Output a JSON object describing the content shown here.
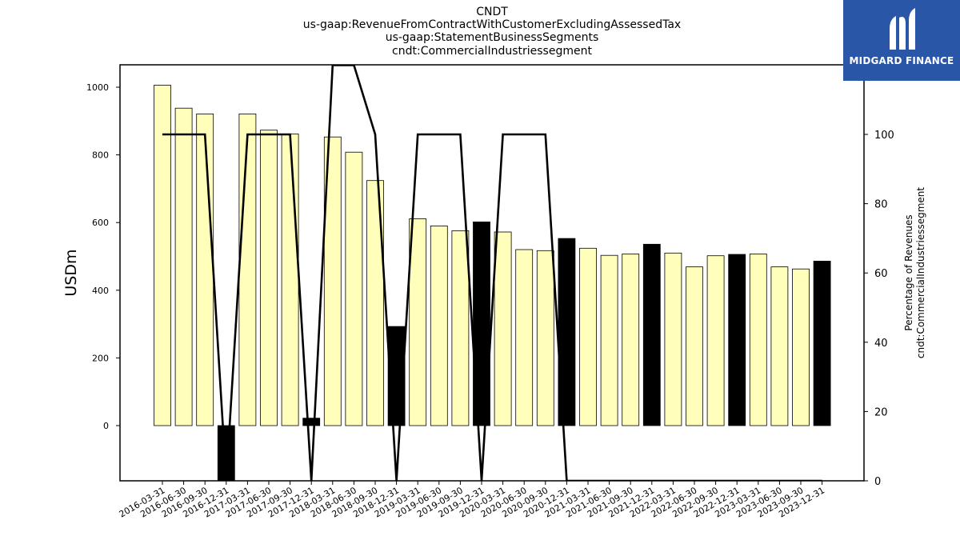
{
  "titles": [
    "CNDT",
    "us-gaap:RevenueFromContractWithCustomerExcludingAssessedTax",
    "us-gaap:StatementBusinessSegments",
    "cndt:CommercialIndustriessegment"
  ],
  "logo": {
    "text": "MIDGARD FINANCE",
    "icon": "midgard-logo-icon",
    "background": "#2a56a8"
  },
  "colors": {
    "positive_bar": "#ffffbb",
    "negative_change_bar": "#000000",
    "line": "#000000"
  },
  "chart_data": {
    "type": "bar",
    "categories": [
      "2016-03-31",
      "2016-06-30",
      "2016-09-30",
      "2016-12-31",
      "2017-03-31",
      "2017-06-30",
      "2017-09-30",
      "2017-12-31",
      "2018-03-31",
      "2018-06-30",
      "2018-09-30",
      "2018-12-31",
      "2019-03-31",
      "2019-06-30",
      "2019-09-30",
      "2019-12-31",
      "2020-03-31",
      "2020-06-30",
      "2020-09-30",
      "2020-12-31",
      "2021-03-31",
      "2021-06-30",
      "2021-09-30",
      "2021-12-31",
      "2022-03-31",
      "2022-06-30",
      "2022-09-30",
      "2022-12-31",
      "2023-03-31",
      "2023-06-30",
      "2023-09-30",
      "2023-12-31"
    ],
    "values": [
      1006,
      938,
      921,
      -195,
      921,
      873,
      862,
      22,
      853,
      808,
      724,
      293,
      611,
      590,
      576,
      602,
      572,
      520,
      517,
      553,
      524,
      503,
      507,
      536,
      510,
      469,
      502,
      506,
      507,
      469,
      463,
      486
    ],
    "bar_styles": [
      "light",
      "light",
      "light",
      "dark",
      "light",
      "light",
      "light",
      "dark",
      "light",
      "light",
      "light",
      "dark",
      "light",
      "light",
      "light",
      "dark",
      "light",
      "light",
      "light",
      "dark",
      "light",
      "light",
      "light",
      "dark",
      "light",
      "light",
      "light",
      "dark",
      "light",
      "light",
      "light",
      "dark"
    ],
    "line_series": {
      "values": [
        100,
        100,
        100,
        0,
        100,
        100,
        100,
        0,
        120,
        120,
        100,
        0,
        100,
        100,
        100,
        0,
        100,
        100,
        100,
        0,
        0,
        0,
        0,
        0,
        0,
        0,
        0,
        0,
        0,
        0,
        0,
        0
      ]
    },
    "ylabel": "USDm",
    "y2label": [
      "Percentage of Revenues",
      "cndt:CommercialIndustriessegment"
    ],
    "ylim": [
      -160,
      1066
    ],
    "y2lim": [
      0,
      124
    ],
    "yticks": [
      0,
      200,
      400,
      600,
      800,
      1000
    ],
    "y2ticks": [
      0,
      20,
      40,
      60,
      80,
      100
    ],
    "grid": false,
    "legend": "none"
  }
}
